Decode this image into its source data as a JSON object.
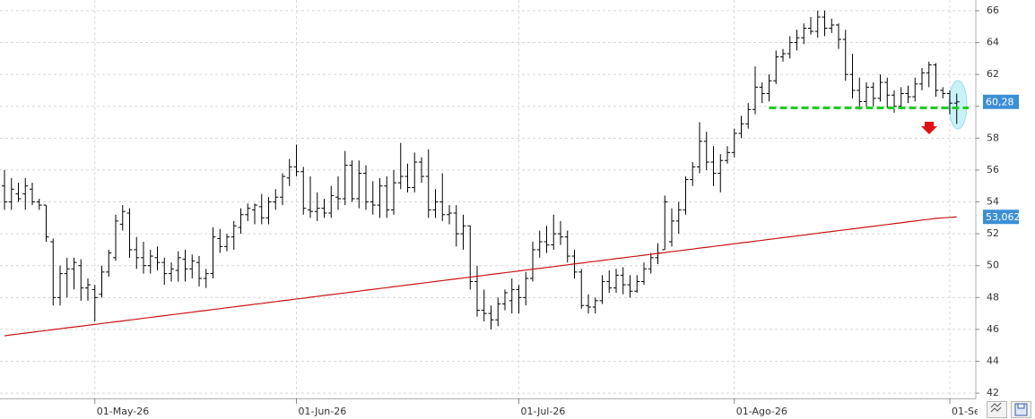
{
  "chart_data": {
    "type": "ohlc",
    "categories": [
      null,
      null,
      null,
      null,
      null,
      null,
      null,
      null,
      null,
      null,
      null,
      null,
      null,
      "01-May-26",
      null,
      null,
      null,
      null,
      null,
      null,
      null,
      null,
      null,
      null,
      null,
      null,
      null,
      null,
      null,
      null,
      null,
      null,
      null,
      null,
      null,
      null,
      null,
      null,
      null,
      null,
      null,
      null,
      "01-Jun-26",
      null,
      null,
      null,
      null,
      null,
      null,
      null,
      null,
      null,
      null,
      null,
      null,
      null,
      null,
      null,
      null,
      null,
      null,
      null,
      null,
      null,
      null,
      null,
      null,
      null,
      null,
      null,
      null,
      null,
      null,
      null,
      "01-Jul-26",
      null,
      null,
      null,
      null,
      null,
      null,
      null,
      null,
      null,
      null,
      null,
      null,
      null,
      null,
      null,
      null,
      null,
      null,
      null,
      null,
      null,
      null,
      null,
      null,
      null,
      null,
      null,
      null,
      null,
      null,
      "01-Ago-26",
      null,
      null,
      null,
      null,
      null,
      null,
      null,
      null,
      null,
      null,
      null,
      null,
      null,
      null,
      null,
      null,
      null,
      null,
      null,
      null,
      null,
      null,
      null,
      null,
      null,
      null,
      null,
      null,
      null,
      null,
      "01-Se",
      null
    ],
    "ohlc": {
      "color": "#000000",
      "label_color": "#3c8fd6",
      "open": [
        55,
        54,
        54.5,
        54.5,
        54.8,
        54,
        53.8,
        51.5,
        48,
        49.5,
        49.8,
        50,
        48.6,
        48.5,
        48.2,
        49.6,
        50.5,
        52.6,
        53.3,
        51,
        50.5,
        50,
        50.5,
        50.2,
        49.5,
        49.7,
        50.4,
        49.8,
        50.2,
        49.2,
        49.5,
        51.7,
        51.2,
        51.8,
        52.4,
        53.2,
        53.5,
        53.7,
        53,
        54,
        54.3,
        55.5,
        56.2,
        55.9,
        53.5,
        53.4,
        53.6,
        53.3,
        54.3,
        54.2,
        56.3,
        54.2,
        55.8,
        54,
        53.8,
        55,
        53.5,
        55.2,
        55.6,
        54.9,
        56.5,
        55.6,
        53.5,
        54,
        53.2,
        53.3,
        52,
        52.5,
        49,
        47.2,
        47,
        46.6,
        47.6,
        47.8,
        48.5,
        48,
        49.2,
        51,
        51.5,
        51.3,
        52,
        51.8,
        50.6,
        49.6,
        47.5,
        47.4,
        47.8,
        49,
        48.6,
        49.4,
        48.8,
        48.4,
        49,
        49.8,
        50.5,
        51,
        51.5,
        52.8,
        53.5,
        55.4,
        56.2,
        57.8,
        56.5,
        55.8,
        56.6,
        57.1,
        58.3,
        58.9,
        59.8,
        61.2,
        60.8,
        61.6,
        63.1,
        63.3,
        64,
        64.3,
        64.9,
        64.7,
        65.6,
        64.9,
        65.1,
        64.2,
        62,
        61,
        60.3,
        61.2,
        60.5,
        61.5,
        60.7,
        60,
        60.8,
        60.6,
        61.4,
        62.1,
        62.6,
        61,
        60.8,
        60.2
      ],
      "high": [
        56,
        55.5,
        55.2,
        55.5,
        55.2,
        54.2,
        53.8,
        51.7,
        50,
        50.5,
        50.5,
        50.4,
        49.2,
        48.8,
        50,
        51,
        53.2,
        53.8,
        53.6,
        51.8,
        51.5,
        51,
        51.2,
        50.5,
        50.2,
        50.9,
        51,
        50.7,
        50.6,
        49.8,
        52.4,
        52.3,
        52,
        52.8,
        53.6,
        53.9,
        53.9,
        54.5,
        54.3,
        54.8,
        55.8,
        56.7,
        57.6,
        56.2,
        55.6,
        54.6,
        54.2,
        55,
        55.6,
        57.2,
        56.6,
        56.6,
        56.3,
        55.3,
        55.5,
        55.6,
        56,
        57.7,
        56.4,
        57.1,
        56.8,
        57.3,
        54.8,
        55.8,
        53.8,
        53.8,
        53.2,
        52.5,
        50,
        48.5,
        47.5,
        48,
        48.5,
        49.2,
        48.8,
        49.6,
        51.5,
        52.2,
        52.5,
        53.2,
        52.8,
        52.2,
        51,
        49.8,
        48.2,
        48,
        49.4,
        49.7,
        49.8,
        49.9,
        49.4,
        49.4,
        50.2,
        50.8,
        51.4,
        54.4,
        53.6,
        54,
        55.6,
        56.5,
        59,
        58.4,
        57.5,
        57,
        57.5,
        58.6,
        59.4,
        60.2,
        62.5,
        61.5,
        62,
        63.5,
        63.6,
        64.4,
        64.8,
        65.2,
        65.6,
        66,
        66,
        65.5,
        65.2,
        64.8,
        63.3,
        61.8,
        61.5,
        61.5,
        62,
        61.8,
        61,
        61.2,
        61.3,
        61.8,
        62.4,
        62.8,
        62.7,
        61.2,
        61,
        60.8
      ],
      "low": [
        53.5,
        53.5,
        54,
        53.5,
        53.8,
        53.5,
        51.5,
        47.5,
        47.5,
        48,
        48.5,
        47.8,
        47.8,
        46.5,
        48,
        49.3,
        50.3,
        52.2,
        50.5,
        49.8,
        49.5,
        49.5,
        49.7,
        48.8,
        49,
        49,
        49,
        49.2,
        48.7,
        48.6,
        49.2,
        50.8,
        50.9,
        51,
        52,
        52.8,
        52.6,
        52.6,
        52.6,
        53.5,
        53.8,
        55,
        55.6,
        53.2,
        53,
        52.8,
        53,
        53,
        53.5,
        53.8,
        54,
        53.6,
        53.5,
        53.2,
        53,
        53,
        53.2,
        54.8,
        54.6,
        54.6,
        55.2,
        53,
        53,
        52.8,
        52.6,
        51.2,
        51,
        48.5,
        46.8,
        46.5,
        46,
        46.2,
        47.2,
        47,
        47,
        47.5,
        49,
        50.5,
        50.8,
        51,
        51.3,
        50.2,
        49.2,
        47.3,
        47,
        47,
        47.6,
        48.3,
        48.3,
        48.2,
        48,
        48.3,
        48.8,
        49.5,
        50.1,
        51,
        51.2,
        52,
        53.2,
        55,
        55.8,
        56,
        55,
        54.6,
        56.4,
        56.8,
        58,
        58.6,
        59.5,
        60.2,
        60.3,
        61.4,
        62.8,
        63,
        63.5,
        63.9,
        64.5,
        64.3,
        64.4,
        64.6,
        63.6,
        61.6,
        60.5,
        59.8,
        59.9,
        60,
        60.3,
        59.9,
        59.6,
        59.9,
        60.2,
        60.3,
        61,
        61.2,
        60.6,
        60.5,
        59.5,
        58.9
      ],
      "close": [
        54,
        54.8,
        54.2,
        55,
        54,
        53.8,
        51.8,
        48,
        49.5,
        49.8,
        50.2,
        48.6,
        48.8,
        48,
        49.6,
        50.8,
        52.8,
        53.4,
        51,
        50.5,
        50,
        50.6,
        50.2,
        49.5,
        49.8,
        50.5,
        49.8,
        50.3,
        49.2,
        49.5,
        51.8,
        51.2,
        51.8,
        52.5,
        53.2,
        53.6,
        53.8,
        53,
        54,
        54.3,
        55.6,
        56.2,
        55.9,
        53.6,
        53.4,
        53.6,
        53.3,
        54.4,
        54.2,
        56.3,
        54.2,
        55.8,
        54,
        53.8,
        55,
        53.5,
        55.2,
        55.6,
        54.9,
        56.5,
        55.6,
        53.5,
        54,
        53.2,
        53.3,
        52,
        52.5,
        49,
        47.2,
        47,
        46.6,
        47.6,
        48.3,
        48.5,
        48,
        49.2,
        51,
        51.5,
        51.3,
        52,
        51.8,
        50.6,
        49.6,
        47.5,
        47.4,
        47.8,
        49,
        48.6,
        49.4,
        48.8,
        48.4,
        49,
        49.8,
        50.5,
        50.8,
        54,
        52.8,
        53.5,
        55.4,
        56.2,
        57.8,
        56.5,
        55.8,
        56.6,
        57.1,
        58.3,
        58.9,
        59.8,
        61.2,
        60.8,
        61.6,
        63.1,
        63.3,
        64,
        64.3,
        64.9,
        64.7,
        65.6,
        64.9,
        65.1,
        64.2,
        62,
        61,
        60.3,
        61.2,
        60.5,
        61.5,
        60.7,
        60,
        60.8,
        60.6,
        61.4,
        62.1,
        62.6,
        61,
        60.8,
        60.2,
        60.28
      ],
      "last_label": "60,28"
    },
    "moving_average": {
      "color": "#cc1111",
      "label_color": "#3c8fd6",
      "values": [
        45.6,
        45.66,
        45.71,
        45.77,
        45.82,
        45.88,
        45.93,
        45.99,
        46.04,
        46.1,
        46.15,
        46.2,
        46.26,
        46.31,
        46.37,
        46.42,
        46.48,
        46.53,
        46.59,
        46.64,
        46.7,
        46.75,
        46.81,
        46.86,
        46.92,
        46.97,
        47.03,
        47.08,
        47.14,
        47.19,
        47.25,
        47.3,
        47.36,
        47.41,
        47.47,
        47.52,
        47.58,
        47.63,
        47.69,
        47.74,
        47.8,
        47.85,
        47.91,
        47.96,
        48.02,
        48.07,
        48.13,
        48.18,
        48.24,
        48.29,
        48.35,
        48.4,
        48.46,
        48.51,
        48.57,
        48.62,
        48.68,
        48.73,
        48.79,
        48.84,
        48.9,
        48.95,
        49.01,
        49.06,
        49.12,
        49.17,
        49.23,
        49.28,
        49.34,
        49.39,
        49.45,
        49.5,
        49.56,
        49.61,
        49.67,
        49.72,
        49.78,
        49.83,
        49.89,
        49.94,
        50,
        50.05,
        50.11,
        50.16,
        50.22,
        50.27,
        50.33,
        50.38,
        50.44,
        50.49,
        50.55,
        50.6,
        50.66,
        50.71,
        50.77,
        50.82,
        50.88,
        50.93,
        50.99,
        51.04,
        51.1,
        51.15,
        51.21,
        51.26,
        51.32,
        51.37,
        51.43,
        51.48,
        51.54,
        51.59,
        51.65,
        51.7,
        51.76,
        51.81,
        51.87,
        51.92,
        51.98,
        52.03,
        52.09,
        52.14,
        52.2,
        52.25,
        52.31,
        52.36,
        52.42,
        52.47,
        52.53,
        52.58,
        52.64,
        52.69,
        52.75,
        52.8,
        52.86,
        52.91,
        52.97,
        53.0,
        53.03,
        53.062
      ],
      "last_label": "53,062"
    },
    "support": {
      "value": 59.9,
      "x0": 110,
      "color": "#22cc22"
    },
    "ylim": [
      41.67,
      66.67
    ],
    "yticks": [
      42,
      44,
      46,
      48,
      50,
      52,
      54,
      56,
      58,
      60,
      62,
      64,
      66
    ],
    "grid": true
  }
}
